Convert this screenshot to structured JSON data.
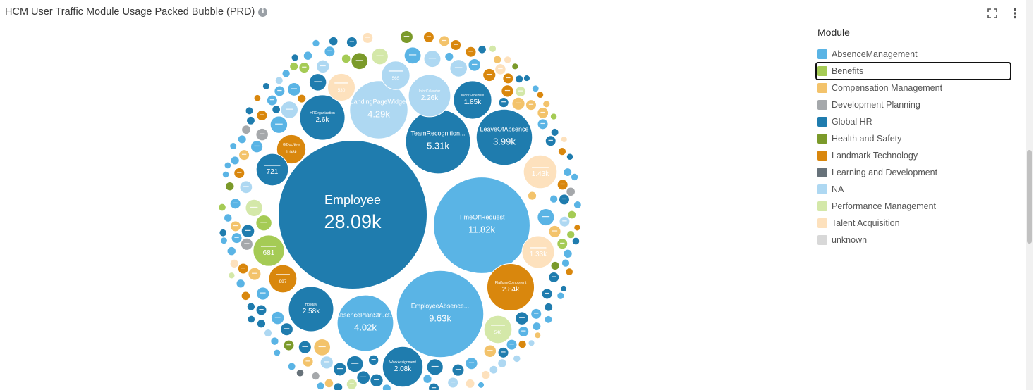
{
  "header": {
    "title": "HCM User Traffic Module Usage Packed Bubble (PRD)",
    "info_icon": "info-icon",
    "fullscreen_icon": "fullscreen-icon",
    "menu_icon": "more-vertical-icon"
  },
  "legend": {
    "title": "Module",
    "items": [
      {
        "label": "AbsenceManagement",
        "color": "#5ab4e5"
      },
      {
        "label": "Benefits",
        "color": "#a5cb55"
      },
      {
        "label": "Compensation Management",
        "color": "#f3c36b"
      },
      {
        "label": "Development Planning",
        "color": "#a5a8ab"
      },
      {
        "label": "Global HR",
        "color": "#1f7cae"
      },
      {
        "label": "Health and Safety",
        "color": "#7b9a2a"
      },
      {
        "label": "Landmark Technology",
        "color": "#d9870d"
      },
      {
        "label": "Learning and Development",
        "color": "#67727a"
      },
      {
        "label": "NA",
        "color": "#aed8f2"
      },
      {
        "label": "Performance Management",
        "color": "#d4e8a9"
      },
      {
        "label": "Talent Acquisition",
        "color": "#fde1bd"
      },
      {
        "label": "unknown",
        "color": "#d8d8d8"
      }
    ]
  },
  "chart_data": {
    "type": "packed-bubble",
    "series_key": "Module",
    "bubbles": [
      {
        "label": "Employee",
        "value": "28.09k",
        "module": "Global HR"
      },
      {
        "label": "TimeOffRequest",
        "value": "11.82k",
        "module": "AbsenceManagement"
      },
      {
        "label": "EmployeeAbsence...",
        "value": "9.63k",
        "module": "AbsenceManagement"
      },
      {
        "label": "TeamRecognition...",
        "value": "5.31k",
        "module": "Global HR"
      },
      {
        "label": "LandingPageWidget",
        "value": "4.29k",
        "module": "NA"
      },
      {
        "label": "AbsencePlanStruct...",
        "value": "4.02k",
        "module": "AbsenceManagement"
      },
      {
        "label": "LeaveOfAbsence",
        "value": "3.99k",
        "module": "Global HR"
      },
      {
        "label": "PlatformComponent",
        "value": "2.84k",
        "module": "Landmark Technology"
      },
      {
        "label": "HROrganization",
        "value": "2.6k",
        "module": "Global HR"
      },
      {
        "label": "Holiday",
        "value": "2.58k",
        "module": "Global HR"
      },
      {
        "label": "InforCalendar",
        "value": "2.26k",
        "module": "NA"
      },
      {
        "label": "WorkAssignment",
        "value": "2.08k",
        "module": "Global HR"
      },
      {
        "label": "WorkSchedule",
        "value": "1.85k",
        "module": "Global HR"
      },
      {
        "label": "",
        "value": "1.43k",
        "module": "Talent Acquisition"
      },
      {
        "label": "",
        "value": "1.33k",
        "module": "Talent Acquisition"
      },
      {
        "label": "GlDocNew",
        "value": "1.08k",
        "module": "Landmark Technology"
      },
      {
        "label": "",
        "value": "997",
        "module": "Landmark Technology"
      },
      {
        "label": "",
        "value": "721",
        "module": "Global HR"
      },
      {
        "label": "",
        "value": "681",
        "module": "Benefits"
      },
      {
        "label": "",
        "value": "565",
        "module": "NA"
      },
      {
        "label": "",
        "value": "546",
        "module": "Performance Management"
      },
      {
        "label": "",
        "value": "530",
        "module": "Talent Acquisition"
      }
    ]
  }
}
